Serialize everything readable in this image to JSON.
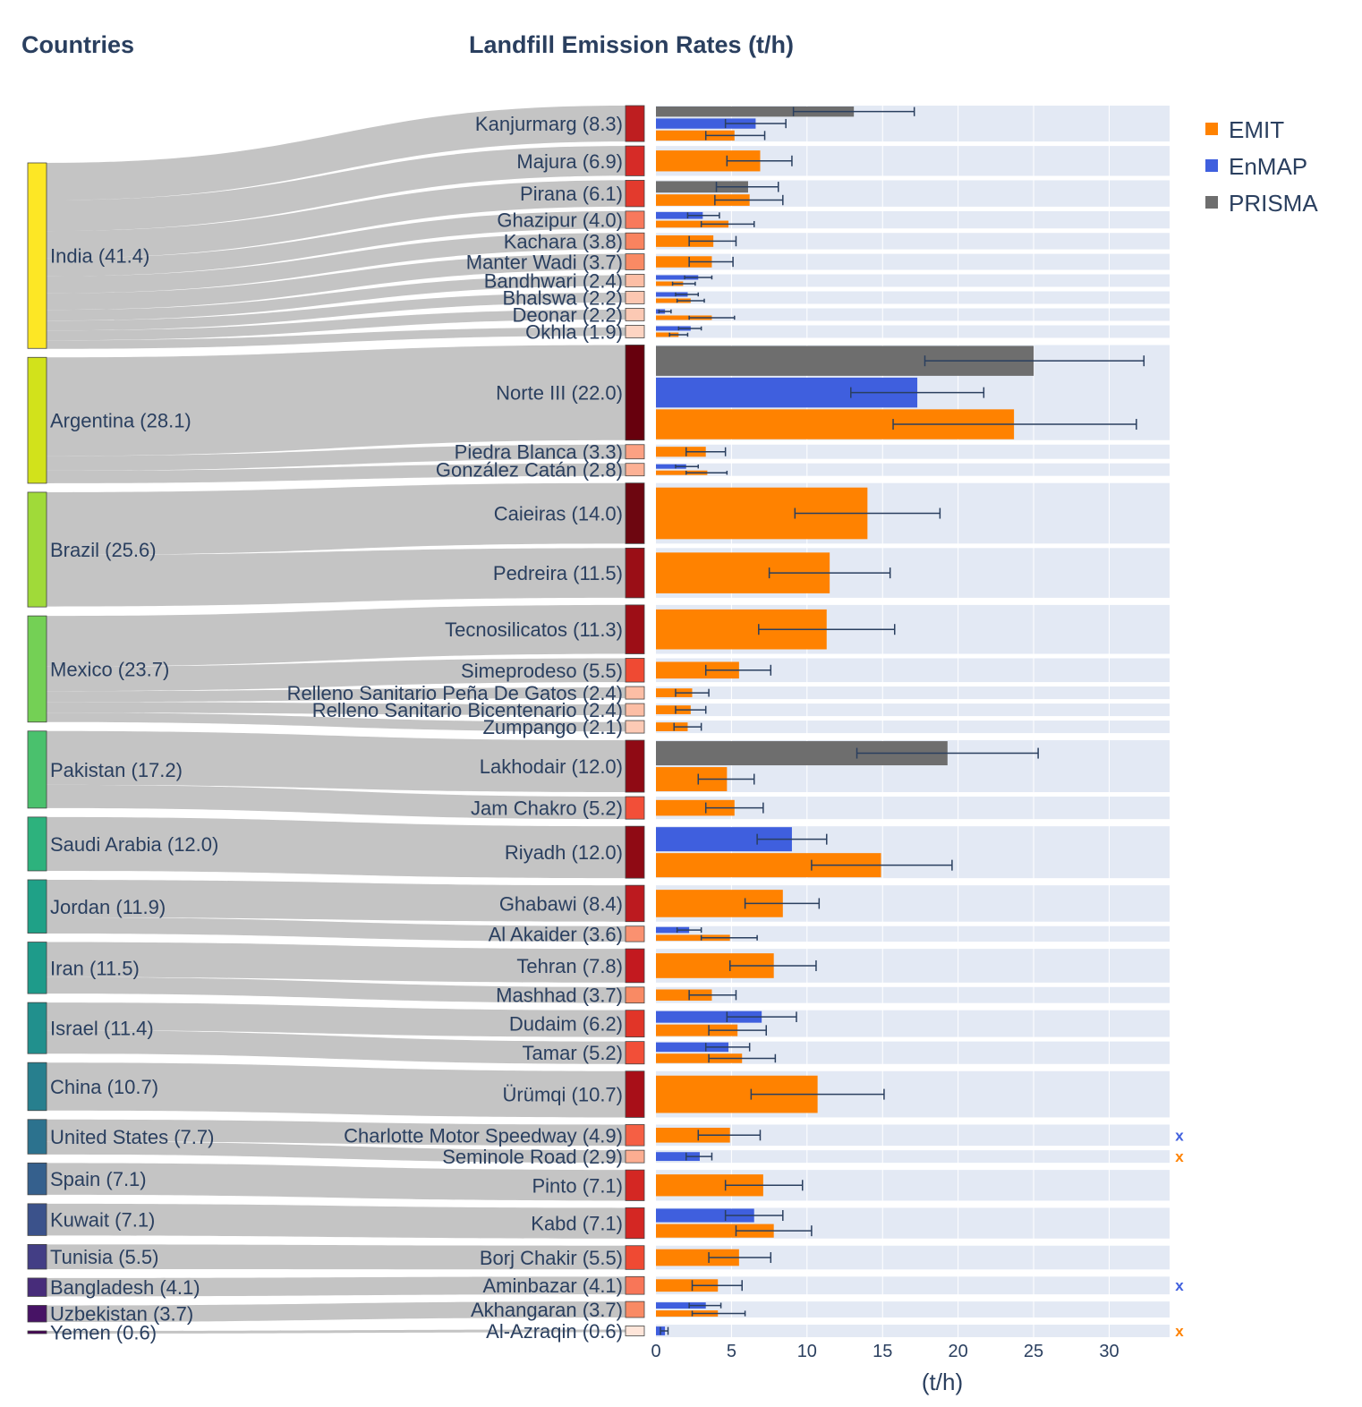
{
  "titles": {
    "countries": "Countries",
    "main": "Landfill Emission Rates (t/h)"
  },
  "chart_data": {
    "type": "sankey+bar",
    "title": "Landfill Emission Rates (t/h)",
    "xlabel": "(t/h)",
    "xlim": [
      0,
      34
    ],
    "xticks": [
      0,
      5,
      10,
      15,
      20,
      25,
      30
    ],
    "legend_position": "top-right",
    "series_names": [
      "EMIT",
      "EnMAP",
      "PRISMA"
    ],
    "colors": {
      "EMIT": "#ff8200",
      "EnMAP": "#3f5fde",
      "PRISMA": "#6e6e6e",
      "band": "#e3e9f4",
      "flow": "#c4c4c4",
      "errorbar": "#2a3f5f",
      "text": "#2a3f5f"
    },
    "countries": [
      {
        "label": "India (41.4)",
        "value": 41.4,
        "color": "#fde725"
      },
      {
        "label": "Argentina (28.1)",
        "value": 28.1,
        "color": "#d2e21b"
      },
      {
        "label": "Brazil (25.6)",
        "value": 25.6,
        "color": "#a0da39"
      },
      {
        "label": "Mexico (23.7)",
        "value": 23.7,
        "color": "#74d055"
      },
      {
        "label": "Pakistan (17.2)",
        "value": 17.2,
        "color": "#4ac16d"
      },
      {
        "label": "Saudi Arabia (12.0)",
        "value": 12.0,
        "color": "#2db27d"
      },
      {
        "label": "Jordan (11.9)",
        "value": 11.9,
        "color": "#1fa187"
      },
      {
        "label": "Iran (11.5)",
        "value": 11.5,
        "color": "#1e9b8a"
      },
      {
        "label": "Israel (11.4)",
        "value": 11.4,
        "color": "#21908d"
      },
      {
        "label": "China (10.7)",
        "value": 10.7,
        "color": "#277f8e"
      },
      {
        "label": "United States (7.7)",
        "value": 7.7,
        "color": "#2c728e"
      },
      {
        "label": "Spain (7.1)",
        "value": 7.1,
        "color": "#35608d"
      },
      {
        "label": "Kuwait (7.1)",
        "value": 7.1,
        "color": "#3b528b"
      },
      {
        "label": "Tunisia (5.5)",
        "value": 5.5,
        "color": "#433e85"
      },
      {
        "label": "Bangladesh (4.1)",
        "value": 4.1,
        "color": "#472c7a"
      },
      {
        "label": "Uzbekistan (3.7)",
        "value": 3.7,
        "color": "#471365"
      },
      {
        "label": "Yemen (0.6)",
        "value": 0.6,
        "color": "#440154"
      }
    ],
    "sites": [
      {
        "label": "Kanjurmarg (8.3)",
        "country": 0,
        "value": 8.3,
        "color": "#be1e20",
        "bars": [
          {
            "s": "PRISMA",
            "v": 13.1,
            "lo": 9.1,
            "hi": 17.1
          },
          {
            "s": "EnMAP",
            "v": 6.6,
            "lo": 4.6,
            "hi": 8.6
          },
          {
            "s": "EMIT",
            "v": 5.2,
            "lo": 3.3,
            "hi": 7.2
          }
        ]
      },
      {
        "label": "Majura (6.9)",
        "country": 0,
        "value": 6.9,
        "color": "#d62b27",
        "bars": [
          {
            "s": "EMIT",
            "v": 6.9,
            "lo": 4.7,
            "hi": 9.0
          }
        ]
      },
      {
        "label": "Pirana (6.1)",
        "country": 0,
        "value": 6.1,
        "color": "#e33a2d",
        "bars": [
          {
            "s": "PRISMA",
            "v": 6.1,
            "lo": 4.0,
            "hi": 8.1
          },
          {
            "s": "EMIT",
            "v": 6.2,
            "lo": 3.9,
            "hi": 8.4
          }
        ]
      },
      {
        "label": "Ghazipur (4.0)",
        "country": 0,
        "value": 4.0,
        "color": "#f8795c",
        "bars": [
          {
            "s": "EnMAP",
            "v": 3.1,
            "lo": 2.1,
            "hi": 4.2
          },
          {
            "s": "EMIT",
            "v": 4.8,
            "lo": 3.0,
            "hi": 6.5
          }
        ]
      },
      {
        "label": "Kachara (3.8)",
        "country": 0,
        "value": 3.8,
        "color": "#f9835f",
        "bars": [
          {
            "s": "EMIT",
            "v": 3.8,
            "lo": 2.2,
            "hi": 5.3
          }
        ]
      },
      {
        "label": "Manter Wadi (3.7)",
        "country": 0,
        "value": 3.7,
        "color": "#f98a64",
        "bars": [
          {
            "s": "EMIT",
            "v": 3.7,
            "lo": 2.2,
            "hi": 5.1
          }
        ]
      },
      {
        "label": "Bandhwari (2.4)",
        "country": 0,
        "value": 2.4,
        "color": "#fcbea5",
        "bars": [
          {
            "s": "EnMAP",
            "v": 2.8,
            "lo": 1.9,
            "hi": 3.7
          },
          {
            "s": "EMIT",
            "v": 1.8,
            "lo": 1.1,
            "hi": 2.6
          }
        ]
      },
      {
        "label": "Bhalswa (2.2)",
        "country": 0,
        "value": 2.2,
        "color": "#fcc7b1",
        "bars": [
          {
            "s": "EnMAP",
            "v": 2.1,
            "lo": 1.3,
            "hi": 2.8
          },
          {
            "s": "EMIT",
            "v": 2.3,
            "lo": 1.4,
            "hi": 3.2
          }
        ]
      },
      {
        "label": "Deonar (2.2)",
        "country": 0,
        "value": 2.2,
        "color": "#fcc9b4",
        "bars": [
          {
            "s": "EnMAP",
            "v": 0.6,
            "lo": 0.2,
            "hi": 1.0
          },
          {
            "s": "EMIT",
            "v": 3.7,
            "lo": 2.2,
            "hi": 5.2
          }
        ]
      },
      {
        "label": "Okhla (1.9)",
        "country": 0,
        "value": 1.9,
        "color": "#fdd4c2",
        "bars": [
          {
            "s": "EnMAP",
            "v": 2.3,
            "lo": 1.5,
            "hi": 3.0
          },
          {
            "s": "EMIT",
            "v": 1.5,
            "lo": 0.9,
            "hi": 2.1
          }
        ]
      },
      {
        "label": "Norte III (22.0)",
        "country": 1,
        "value": 22.0,
        "color": "#67000d",
        "bars": [
          {
            "s": "PRISMA",
            "v": 25.0,
            "lo": 17.8,
            "hi": 32.3
          },
          {
            "s": "EnMAP",
            "v": 17.3,
            "lo": 12.9,
            "hi": 21.7
          },
          {
            "s": "EMIT",
            "v": 23.7,
            "lo": 15.7,
            "hi": 31.8
          }
        ]
      },
      {
        "label": "Piedra Blanca (3.3)",
        "country": 1,
        "value": 3.3,
        "color": "#fca183",
        "bars": [
          {
            "s": "EMIT",
            "v": 3.3,
            "lo": 2.0,
            "hi": 4.6
          }
        ]
      },
      {
        "label": "González Catán (2.8)",
        "country": 1,
        "value": 2.8,
        "color": "#fcb195",
        "bars": [
          {
            "s": "EnMAP",
            "v": 2.0,
            "lo": 1.3,
            "hi": 2.8
          },
          {
            "s": "EMIT",
            "v": 3.4,
            "lo": 2.0,
            "hi": 4.7
          }
        ]
      },
      {
        "label": "Caieiras (14.0)",
        "country": 2,
        "value": 14.0,
        "color": "#6d0610",
        "bars": [
          {
            "s": "EMIT",
            "v": 14.0,
            "lo": 9.2,
            "hi": 18.8
          }
        ]
      },
      {
        "label": "Pedreira (11.5)",
        "country": 2,
        "value": 11.5,
        "color": "#9a0e16",
        "bars": [
          {
            "s": "EMIT",
            "v": 11.5,
            "lo": 7.5,
            "hi": 15.5
          }
        ]
      },
      {
        "label": "Tecnosilicatos (11.3)",
        "country": 3,
        "value": 11.3,
        "color": "#9d0e16",
        "bars": [
          {
            "s": "EMIT",
            "v": 11.3,
            "lo": 6.8,
            "hi": 15.8
          }
        ]
      },
      {
        "label": "Simeprodeso (5.5)",
        "country": 3,
        "value": 5.5,
        "color": "#ef4a33",
        "bars": [
          {
            "s": "EMIT",
            "v": 5.5,
            "lo": 3.3,
            "hi": 7.6
          }
        ]
      },
      {
        "label": "Relleno Sanitario Peña De Gatos (2.4)",
        "country": 3,
        "value": 2.4,
        "color": "#fcbea5",
        "bars": [
          {
            "s": "EMIT",
            "v": 2.4,
            "lo": 1.3,
            "hi": 3.5
          }
        ]
      },
      {
        "label": "Relleno Sanitario Bicentenario (2.4)",
        "country": 3,
        "value": 2.4,
        "color": "#fcbea5",
        "bars": [
          {
            "s": "EMIT",
            "v": 2.3,
            "lo": 1.3,
            "hi": 3.3
          }
        ]
      },
      {
        "label": "Zumpango (2.1)",
        "country": 3,
        "value": 2.1,
        "color": "#fdcab5",
        "bars": [
          {
            "s": "EMIT",
            "v": 2.1,
            "lo": 1.2,
            "hi": 3.0
          }
        ]
      },
      {
        "label": "Lakhodair (12.0)",
        "country": 4,
        "value": 12.0,
        "color": "#8f0a14",
        "bars": [
          {
            "s": "PRISMA",
            "v": 19.3,
            "lo": 13.3,
            "hi": 25.3
          },
          {
            "s": "EMIT",
            "v": 4.7,
            "lo": 2.8,
            "hi": 6.5
          }
        ]
      },
      {
        "label": "Jam Chakro (5.2)",
        "country": 4,
        "value": 5.2,
        "color": "#f24f38",
        "bars": [
          {
            "s": "EMIT",
            "v": 5.2,
            "lo": 3.3,
            "hi": 7.1
          }
        ]
      },
      {
        "label": "Riyadh (12.0)",
        "country": 5,
        "value": 12.0,
        "color": "#8f0a14",
        "bars": [
          {
            "s": "EnMAP",
            "v": 9.0,
            "lo": 6.7,
            "hi": 11.3
          },
          {
            "s": "EMIT",
            "v": 14.9,
            "lo": 10.3,
            "hi": 19.6
          }
        ]
      },
      {
        "label": "Ghabawi (8.4)",
        "country": 6,
        "value": 8.4,
        "color": "#bc1a1f",
        "bars": [
          {
            "s": "EMIT",
            "v": 8.4,
            "lo": 5.9,
            "hi": 10.8
          }
        ]
      },
      {
        "label": "Al Akaider (3.6)",
        "country": 6,
        "value": 3.6,
        "color": "#fa9170",
        "bars": [
          {
            "s": "EnMAP",
            "v": 2.2,
            "lo": 1.4,
            "hi": 3.0
          },
          {
            "s": "EMIT",
            "v": 4.9,
            "lo": 3.0,
            "hi": 6.7
          }
        ]
      },
      {
        "label": "Tehran (7.8)",
        "country": 7,
        "value": 7.8,
        "color": "#c3191f",
        "bars": [
          {
            "s": "EMIT",
            "v": 7.8,
            "lo": 4.9,
            "hi": 10.6
          }
        ]
      },
      {
        "label": "Mashhad (3.7)",
        "country": 7,
        "value": 3.7,
        "color": "#f98a64",
        "bars": [
          {
            "s": "EMIT",
            "v": 3.7,
            "lo": 2.2,
            "hi": 5.3
          }
        ]
      },
      {
        "label": "Dudaim (6.2)",
        "country": 8,
        "value": 6.2,
        "color": "#e13528",
        "bars": [
          {
            "s": "EnMAP",
            "v": 7.0,
            "lo": 4.7,
            "hi": 9.3
          },
          {
            "s": "EMIT",
            "v": 5.4,
            "lo": 3.5,
            "hi": 7.3
          }
        ]
      },
      {
        "label": "Tamar (5.2)",
        "country": 8,
        "value": 5.2,
        "color": "#f24f38",
        "bars": [
          {
            "s": "EnMAP",
            "v": 4.8,
            "lo": 3.3,
            "hi": 6.2
          },
          {
            "s": "EMIT",
            "v": 5.7,
            "lo": 3.5,
            "hi": 7.9
          }
        ]
      },
      {
        "label": "Ürümqi (10.7)",
        "country": 9,
        "value": 10.7,
        "color": "#a80f18",
        "bars": [
          {
            "s": "EMIT",
            "v": 10.7,
            "lo": 6.3,
            "hi": 15.1
          }
        ]
      },
      {
        "label": "Charlotte Motor Speedway (4.9)",
        "country": 10,
        "value": 4.9,
        "color": "#f55f44",
        "bars": [
          {
            "s": "EMIT",
            "v": 4.9,
            "lo": 2.8,
            "hi": 6.9
          }
        ],
        "marker": "EnMAP"
      },
      {
        "label": "Seminole Road (2.9)",
        "country": 10,
        "value": 2.9,
        "color": "#fcad91",
        "bars": [
          {
            "s": "EnMAP",
            "v": 2.9,
            "lo": 2.0,
            "hi": 3.7
          }
        ],
        "marker": "EMIT"
      },
      {
        "label": "Pinto (7.1)",
        "country": 11,
        "value": 7.1,
        "color": "#d42723",
        "bars": [
          {
            "s": "EMIT",
            "v": 7.1,
            "lo": 4.6,
            "hi": 9.7
          }
        ]
      },
      {
        "label": "Kabd (7.1)",
        "country": 12,
        "value": 7.1,
        "color": "#d42723",
        "bars": [
          {
            "s": "EnMAP",
            "v": 6.5,
            "lo": 4.6,
            "hi": 8.4
          },
          {
            "s": "EMIT",
            "v": 7.8,
            "lo": 5.3,
            "hi": 10.3
          }
        ]
      },
      {
        "label": "Borj Chakir (5.5)",
        "country": 13,
        "value": 5.5,
        "color": "#ef4a33",
        "bars": [
          {
            "s": "EMIT",
            "v": 5.5,
            "lo": 3.5,
            "hi": 7.6
          }
        ]
      },
      {
        "label": "Aminbazar (4.1)",
        "country": 14,
        "value": 4.1,
        "color": "#f87658",
        "bars": [
          {
            "s": "EMIT",
            "v": 4.1,
            "lo": 2.4,
            "hi": 5.7
          }
        ],
        "marker": "EnMAP"
      },
      {
        "label": "Akhangaran (3.7)",
        "country": 15,
        "value": 3.7,
        "color": "#f98a64",
        "bars": [
          {
            "s": "EnMAP",
            "v": 3.3,
            "lo": 2.2,
            "hi": 4.3
          },
          {
            "s": "EMIT",
            "v": 4.1,
            "lo": 2.4,
            "hi": 5.9
          }
        ]
      },
      {
        "label": "Al-Azraqin (0.6)",
        "country": 16,
        "value": 0.6,
        "color": "#fee5d9",
        "bars": [
          {
            "s": "EnMAP",
            "v": 0.6,
            "lo": 0.3,
            "hi": 0.8
          }
        ],
        "marker": "EMIT"
      }
    ]
  },
  "legend": {
    "items": [
      "EMIT",
      "EnMAP",
      "PRISMA"
    ]
  },
  "missing_marker": "x"
}
